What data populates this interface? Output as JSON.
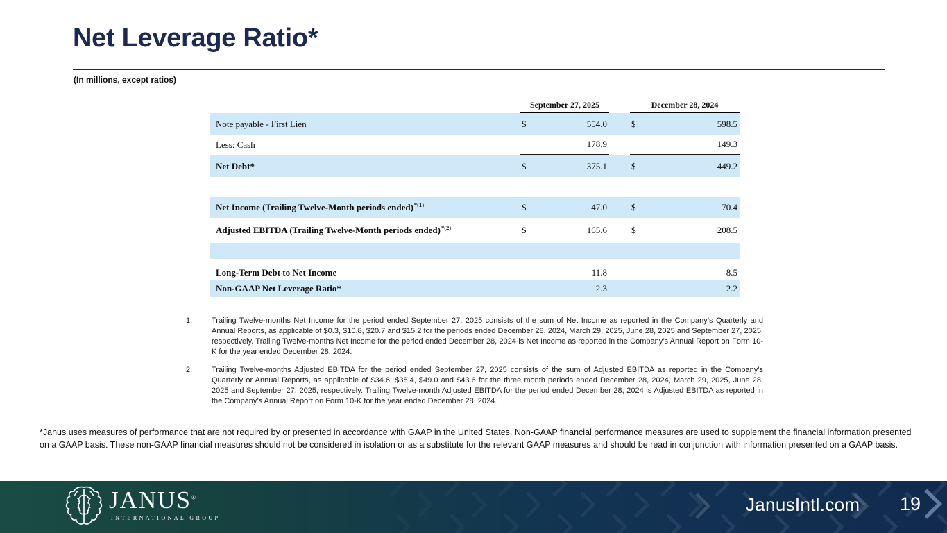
{
  "slide": {
    "title": "Net Leverage Ratio*",
    "units_note": "(In millions, except ratios)"
  },
  "table": {
    "col_headers": [
      "September 27, 2025",
      "December 28, 2024"
    ],
    "rows": [
      {
        "label": "Note payable - First Lien",
        "sup": "",
        "bold": false,
        "shade": true,
        "underline_vals": false,
        "d1": "$",
        "v1": "554.0",
        "d2": "$",
        "v2": "598.5",
        "h": 31
      },
      {
        "label": "Less: Cash",
        "sup": "",
        "bold": false,
        "shade": false,
        "underline_vals": true,
        "d1": "",
        "v1": "178.9",
        "d2": "",
        "v2": "149.3",
        "h": 30
      },
      {
        "label": "Net Debt*",
        "sup": "",
        "bold": true,
        "shade": true,
        "underline_vals": false,
        "d1": "$",
        "v1": "375.1",
        "d2": "$",
        "v2": "449.2",
        "h": 31
      },
      {
        "label": "",
        "blank": true,
        "shade": false,
        "h": 29
      },
      {
        "label": "Net Income (Trailing Twelve-Month periods ended)",
        "sup": "*(1)",
        "bold": true,
        "shade": true,
        "underline_vals": false,
        "d1": "$",
        "v1": "47.0",
        "d2": "$",
        "v2": "70.4",
        "h": 30
      },
      {
        "label": "Adjusted EBITDA (Trailing Twelve-Month periods ended)",
        "sup": "*(2)",
        "bold": true,
        "shade": false,
        "underline_vals": false,
        "d1": "$",
        "v1": "165.6",
        "d2": "$",
        "v2": "208.5",
        "h": 36
      },
      {
        "label": "",
        "blank": true,
        "shade": true,
        "h": 23
      },
      {
        "label": "",
        "blank": true,
        "shade": false,
        "h": 8
      },
      {
        "label": "Long-Term Debt to Net Income",
        "sup": "",
        "bold": true,
        "shade": false,
        "underline_vals": false,
        "d1": "",
        "v1": "11.8",
        "d2": "",
        "v2": "8.5",
        "h": 23
      },
      {
        "label": "Non-GAAP Net Leverage Ratio*",
        "sup": "",
        "bold": true,
        "shade": true,
        "underline_vals": false,
        "d1": "",
        "v1": "2.3",
        "d2": "",
        "v2": "2.2",
        "h": 24
      }
    ]
  },
  "footnotes": [
    {
      "num": "1.",
      "text": "Trailing Twelve-months Net Income for the period ended September 27, 2025 consists of the sum of Net Income as reported in the Company’s Quarterly and Annual Reports, as applicable of $0.3, $10.8, $20.7 and $15.2 for the periods ended December 28, 2024, March 29, 2025, June 28, 2025 and September 27, 2025, respectively. Trailing Twelve-months Net Income for the period ended December 28, 2024 is Net Income as reported in the Company’s Annual Report on Form 10-K for the year ended December 28, 2024."
    },
    {
      "num": "2.",
      "text": "Trailing Twelve-months Adjusted EBITDA for the period ended September 27, 2025 consists of the sum of Adjusted EBITDA as reported in the Company’s Quarterly or Annual Reports, as applicable of $34.6, $38.4, $49.0 and $43.6 for the three month periods ended December 28, 2024, March 29, 2025, June 28, 2025 and September 27, 2025, respectively. Trailing Twelve-month Adjusted EBITDA for the period ended December 28, 2024 is Adjusted EBITDA as reported in the Company’s Annual Report on Form 10-K for the year ended December 28, 2024."
    }
  ],
  "disclaimer": "*Janus uses measures of performance that are not required by or presented in accordance with GAAP in the United States. Non-GAAP financial performance measures are used to supplement the financial information presented on a GAAP basis. These non-GAAP financial measures should not be considered in isolation or as a substitute for the relevant GAAP measures and should be read in conjunction with information presented on a GAAP basis.",
  "footer": {
    "logo_name": "JANUS",
    "logo_reg": "®",
    "logo_subtitle": "INTERNATIONAL GROUP",
    "website": "JanusIntl.com",
    "page_number": "19"
  },
  "colors": {
    "accent_navy": "#1b2a52",
    "row_highlight_blue": "#cfe9f9",
    "footer_green": "#1a4c44",
    "footer_navy": "#112a4e"
  }
}
